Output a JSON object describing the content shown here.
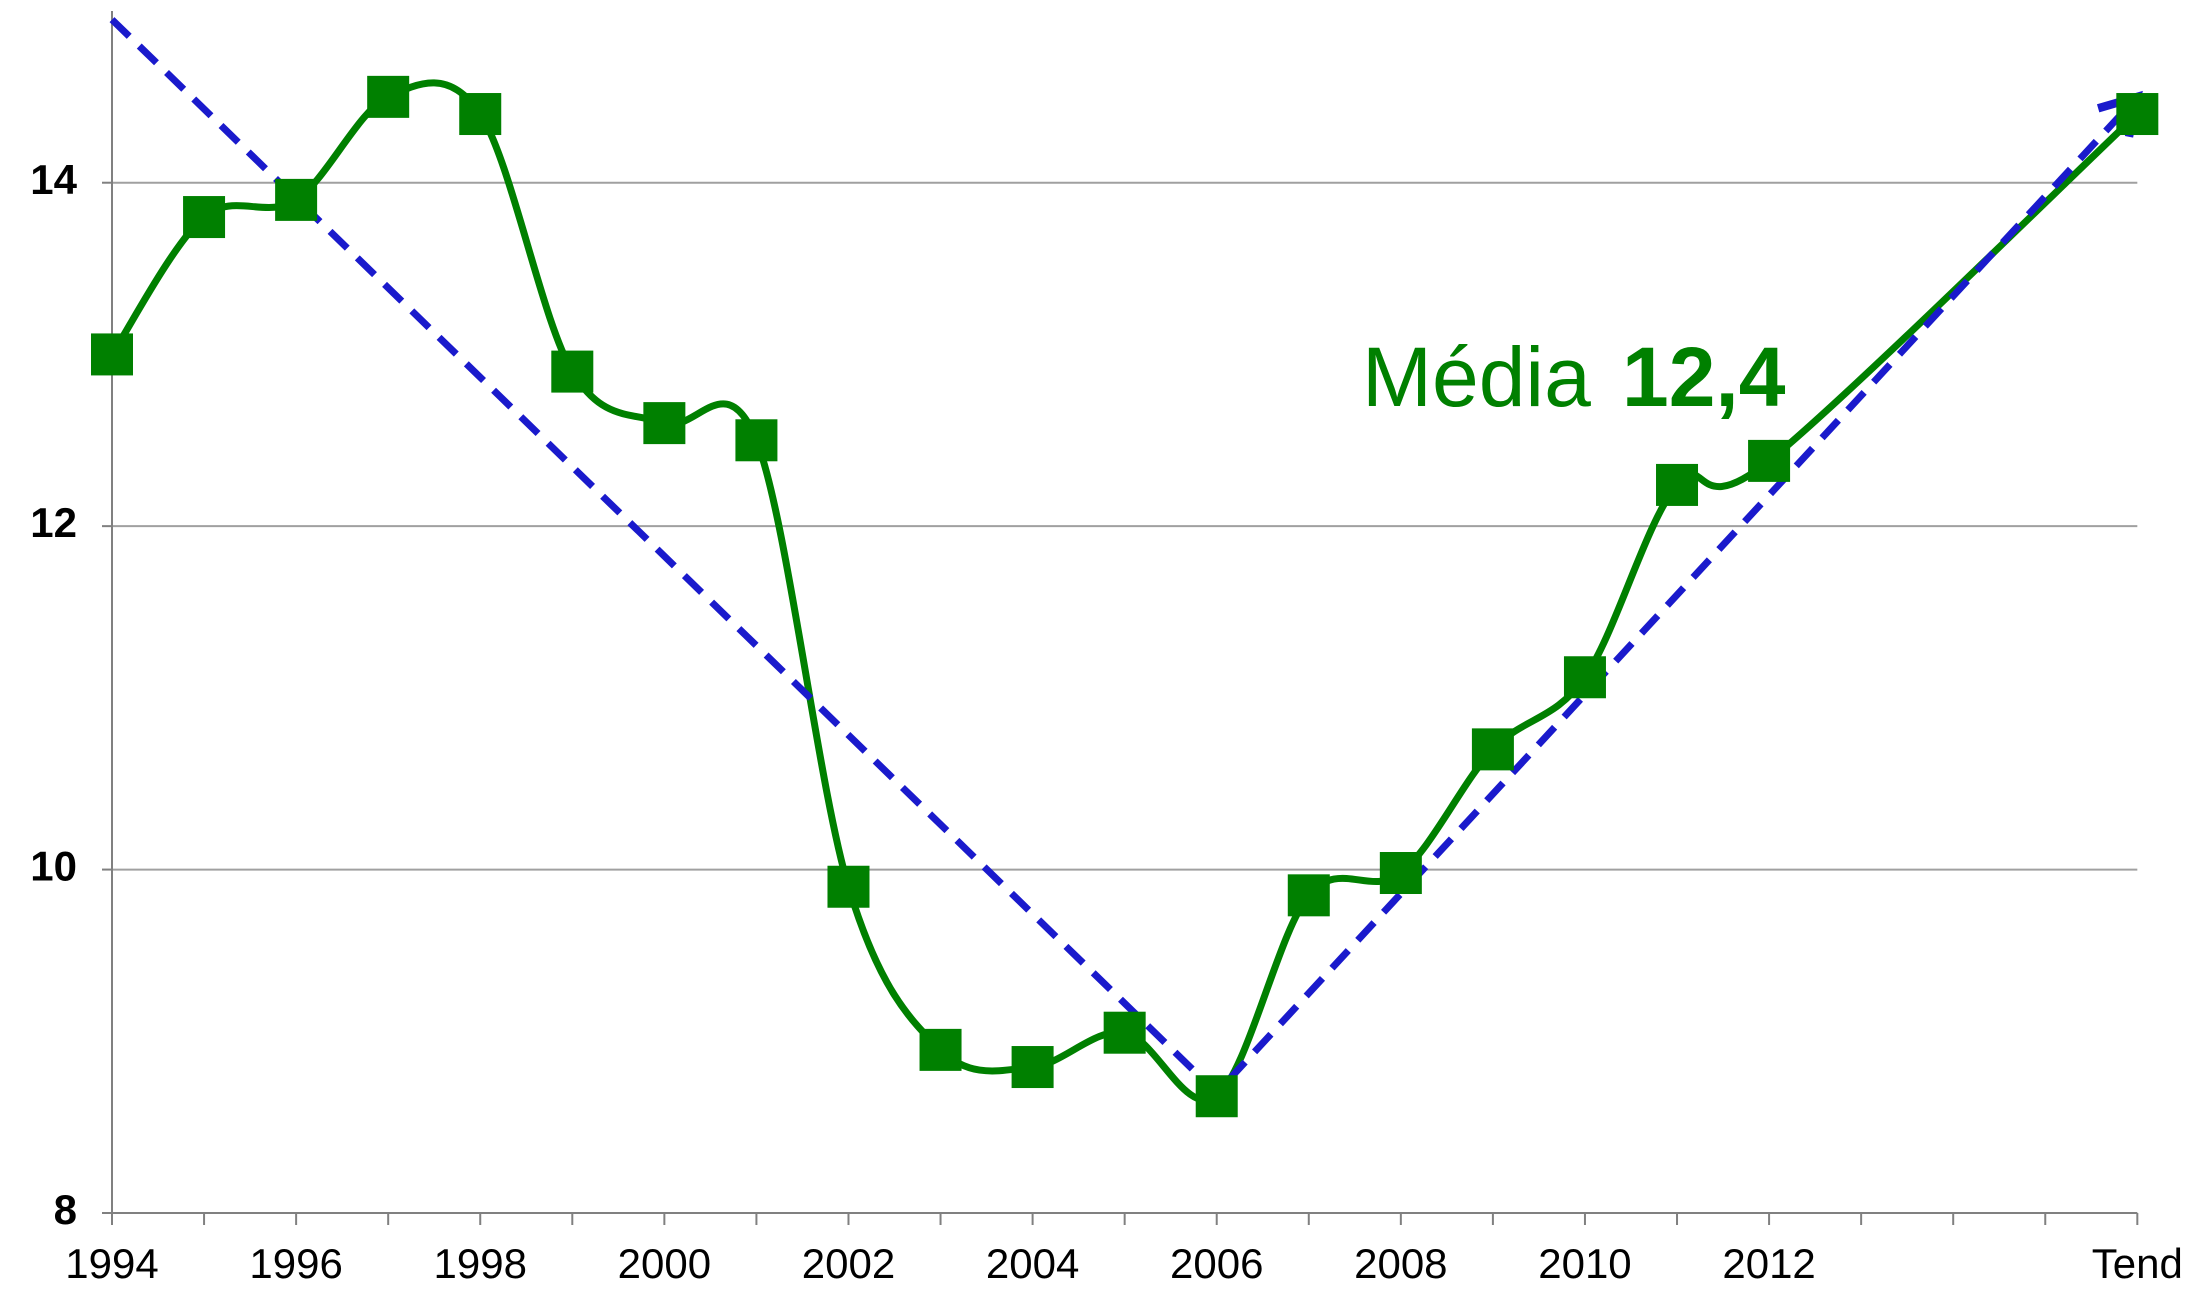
{
  "chart_data": {
    "type": "line",
    "categories": [
      "1994",
      null,
      "1996",
      null,
      "1998",
      null,
      "2000",
      null,
      "2002",
      null,
      "2004",
      null,
      "2006",
      null,
      "2008",
      null,
      "2010",
      null,
      "2012",
      null,
      null,
      null,
      "Tend"
    ],
    "series": [
      {
        "name": "Média",
        "color": "#008000",
        "smooth": true,
        "markers": true,
        "values": [
          13.0,
          13.8,
          13.9,
          14.5,
          14.4,
          12.9,
          12.6,
          12.5,
          9.9,
          8.95,
          8.85,
          9.05,
          8.68,
          9.85,
          9.98,
          10.7,
          11.12,
          12.24,
          12.38,
          null,
          null,
          null,
          14.4
        ]
      },
      {
        "name": "Tendência",
        "color": "#1a1acc",
        "dashed": true,
        "arrow": true,
        "values": [
          14.95,
          null,
          null,
          null,
          null,
          null,
          null,
          null,
          null,
          null,
          null,
          null,
          8.7,
          null,
          null,
          null,
          null,
          null,
          null,
          null,
          null,
          null,
          14.5
        ]
      }
    ],
    "connect_gaps": true,
    "annotation": {
      "label": "Média",
      "value": "12,4"
    },
    "ylim": [
      8,
      15
    ],
    "yticks": [
      8,
      10,
      12,
      14
    ],
    "grid": true
  }
}
